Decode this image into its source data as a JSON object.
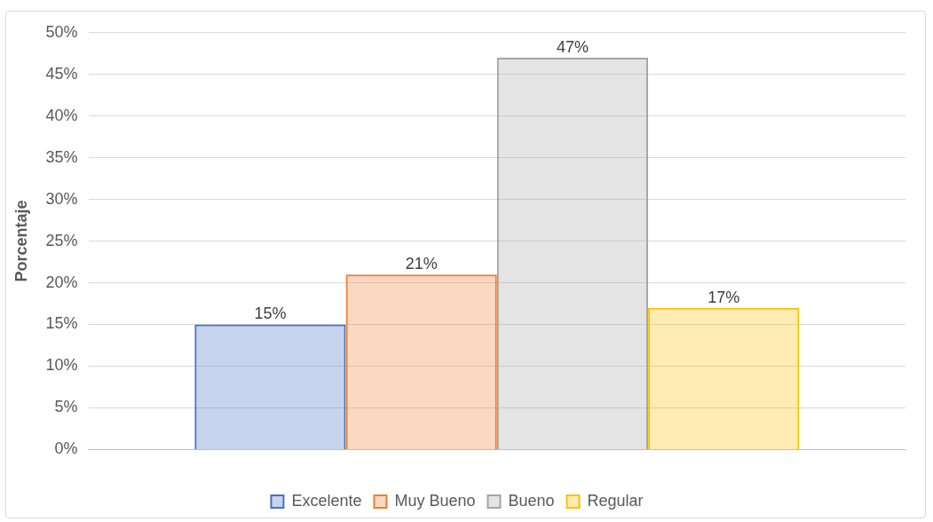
{
  "chart_data": {
    "type": "bar",
    "ylabel": "Porcentaje",
    "categories": [
      null
    ],
    "series": [
      {
        "name": "Excelente",
        "color": "#4472c4",
        "values": [
          15
        ],
        "value_labels": [
          "15%"
        ]
      },
      {
        "name": "Muy Bueno",
        "color": "#ed7d31",
        "values": [
          21
        ],
        "value_labels": [
          "21%"
        ]
      },
      {
        "name": "Bueno",
        "color": "#a5a5a5",
        "values": [
          47
        ],
        "value_labels": [
          "47%"
        ]
      },
      {
        "name": "Regular",
        "color": "#ffc000",
        "values": [
          17
        ],
        "value_labels": [
          "17%"
        ]
      }
    ],
    "ylim": [
      0,
      50
    ],
    "yticks": [
      {
        "value": 0,
        "label": "0%"
      },
      {
        "value": 5,
        "label": "5%"
      },
      {
        "value": 10,
        "label": "10%"
      },
      {
        "value": 15,
        "label": "15%"
      },
      {
        "value": 20,
        "label": "20%"
      },
      {
        "value": 25,
        "label": "25%"
      },
      {
        "value": 30,
        "label": "30%"
      },
      {
        "value": 35,
        "label": "35%"
      },
      {
        "value": 40,
        "label": "40%"
      },
      {
        "value": 45,
        "label": "45%"
      },
      {
        "value": 50,
        "label": "50%"
      }
    ],
    "grid": "y",
    "legend": "bottom"
  }
}
